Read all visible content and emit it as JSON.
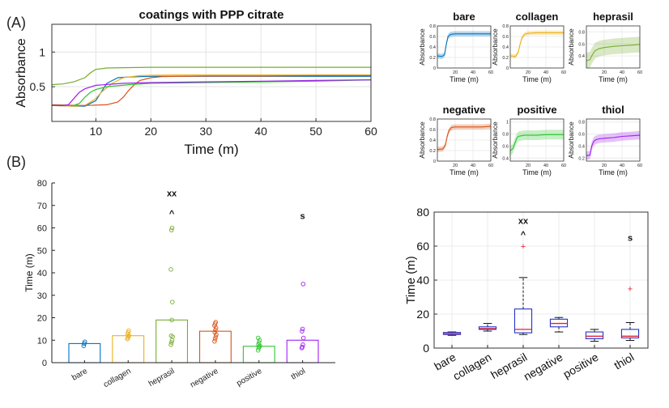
{
  "panel_labels": {
    "a": "(A)",
    "b": "(B)"
  },
  "colors": {
    "bare": "#0072BD",
    "collagen": "#EDB120",
    "hepr": "#77AC30",
    "negative": "#D95319",
    "positive": "#2EC42E",
    "thiol": "#A020F0",
    "box": "#2233CC",
    "median": "#E0203A",
    "outlier": "#E0203A"
  },
  "chart_data": [
    {
      "type": "line",
      "title": "coatings with PPP citrate",
      "xlabel": "Time (m)",
      "ylabel": "Absorbance",
      "xlim": [
        2,
        60
      ],
      "ylim": [
        0,
        1.4
      ],
      "xticks": [
        "10",
        "20",
        "30",
        "40",
        "50",
        "60"
      ],
      "yticks": [
        "0.5",
        "1"
      ],
      "grid": true,
      "series": [
        {
          "key": "bare",
          "x": [
            2,
            6,
            8,
            10,
            12,
            14,
            16,
            18,
            20,
            25,
            30,
            40,
            50,
            60
          ],
          "y": [
            0.23,
            0.22,
            0.22,
            0.3,
            0.55,
            0.63,
            0.64,
            0.645,
            0.65,
            0.65,
            0.65,
            0.65,
            0.65,
            0.65
          ]
        },
        {
          "key": "collagen",
          "x": [
            2,
            6,
            8,
            10,
            11,
            13,
            15,
            18,
            20,
            25,
            30,
            40,
            50,
            60
          ],
          "y": [
            0.23,
            0.22,
            0.23,
            0.33,
            0.42,
            0.55,
            0.63,
            0.66,
            0.665,
            0.67,
            0.67,
            0.67,
            0.67,
            0.67
          ]
        },
        {
          "key": "hepr",
          "x": [
            2,
            4,
            6,
            8,
            9,
            10,
            12,
            15,
            20,
            30,
            40,
            50,
            60
          ],
          "y": [
            0.53,
            0.54,
            0.57,
            0.63,
            0.7,
            0.75,
            0.77,
            0.775,
            0.78,
            0.78,
            0.78,
            0.78,
            0.78
          ]
        },
        {
          "key": "negative",
          "x": [
            2,
            8,
            12,
            14,
            15,
            16,
            17,
            18,
            20,
            22,
            25,
            30,
            40,
            50,
            60
          ],
          "y": [
            0.24,
            0.23,
            0.24,
            0.28,
            0.35,
            0.45,
            0.53,
            0.59,
            0.63,
            0.645,
            0.65,
            0.655,
            0.655,
            0.66,
            0.66
          ]
        },
        {
          "key": "positive",
          "x": [
            2,
            6,
            7,
            8,
            9,
            10,
            12,
            16,
            20,
            30,
            40,
            50,
            60
          ],
          "y": [
            0.23,
            0.23,
            0.26,
            0.35,
            0.42,
            0.46,
            0.5,
            0.53,
            0.55,
            0.56,
            0.57,
            0.58,
            0.6
          ]
        },
        {
          "key": "thiol",
          "x": [
            2,
            4,
            5,
            6,
            7,
            8,
            10,
            15,
            20,
            30,
            40,
            50,
            60
          ],
          "y": [
            0.23,
            0.23,
            0.24,
            0.33,
            0.42,
            0.47,
            0.52,
            0.55,
            0.56,
            0.57,
            0.58,
            0.59,
            0.6
          ]
        }
      ]
    },
    {
      "type": "line",
      "title": "",
      "xlabel": "Time (m)",
      "ylabel": "Absorbance",
      "xlim": [
        0,
        60
      ],
      "panels": [
        {
          "title": "bare",
          "key": "bare",
          "ylim": [
            0,
            0.8
          ],
          "yticks": [
            "0",
            "0.2",
            "0.4",
            "0.6",
            "0.8"
          ],
          "xticks": [
            "20",
            "40",
            "60"
          ],
          "x": [
            0,
            5,
            8,
            10,
            12,
            15,
            20,
            30,
            40,
            50,
            60
          ],
          "y": [
            0.23,
            0.22,
            0.25,
            0.45,
            0.6,
            0.64,
            0.65,
            0.65,
            0.65,
            0.65,
            0.65
          ],
          "band": 0.05
        },
        {
          "title": "collagen",
          "key": "collagen",
          "ylim": [
            0,
            0.8
          ],
          "yticks": [
            "0",
            "0.2",
            "0.4",
            "0.6",
            "0.8"
          ],
          "xticks": [
            "20",
            "40",
            "60"
          ],
          "x": [
            0,
            6,
            9,
            11,
            13,
            16,
            20,
            30,
            40,
            50,
            60
          ],
          "y": [
            0.23,
            0.22,
            0.3,
            0.45,
            0.57,
            0.64,
            0.66,
            0.67,
            0.67,
            0.67,
            0.67
          ],
          "band": 0.04
        },
        {
          "title": "heprasil",
          "key": "hepr",
          "ylim": [
            0.2,
            0.9
          ],
          "yticks": [
            "0.4",
            "0.6",
            "0.8"
          ],
          "xticks": [
            "20",
            "40",
            "60"
          ],
          "x": [
            0,
            4,
            6,
            8,
            10,
            14,
            20,
            30,
            40,
            50,
            60
          ],
          "y": [
            0.32,
            0.34,
            0.4,
            0.45,
            0.49,
            0.52,
            0.54,
            0.56,
            0.57,
            0.58,
            0.59
          ],
          "band": 0.13
        },
        {
          "title": "negative",
          "key": "negative",
          "ylim": [
            0,
            0.8
          ],
          "yticks": [
            "0",
            "0.2",
            "0.4",
            "0.6",
            "0.8"
          ],
          "xticks": [
            "20",
            "40",
            "60"
          ],
          "x": [
            0,
            6,
            9,
            11,
            13,
            16,
            20,
            30,
            40,
            50,
            60
          ],
          "y": [
            0.22,
            0.23,
            0.3,
            0.47,
            0.58,
            0.64,
            0.65,
            0.65,
            0.65,
            0.65,
            0.66
          ],
          "band": 0.05
        },
        {
          "title": "positive",
          "key": "positive",
          "ylim": [
            0.35,
            1.05
          ],
          "yticks": [
            "0.4",
            "0.6",
            "0.8",
            "1"
          ],
          "xticks": [
            "20",
            "40",
            "60"
          ],
          "x": [
            0,
            3,
            5,
            7,
            9,
            12,
            16,
            20,
            30,
            40,
            50,
            60
          ],
          "y": [
            0.52,
            0.56,
            0.64,
            0.72,
            0.76,
            0.77,
            0.78,
            0.78,
            0.78,
            0.79,
            0.79,
            0.79
          ],
          "band": 0.08
        },
        {
          "title": "thiol",
          "key": "thiol",
          "ylim": [
            0.15,
            0.85
          ],
          "yticks": [
            "0.2",
            "0.4",
            "0.6",
            "0.8"
          ],
          "xticks": [
            "20",
            "40",
            "60"
          ],
          "x": [
            0,
            4,
            6,
            8,
            10,
            14,
            20,
            30,
            40,
            50,
            60
          ],
          "y": [
            0.24,
            0.25,
            0.4,
            0.47,
            0.5,
            0.52,
            0.53,
            0.54,
            0.56,
            0.57,
            0.58
          ],
          "band": 0.07
        }
      ]
    },
    {
      "type": "bar",
      "title": "",
      "xlabel": "",
      "ylabel": "Time (m)",
      "ylim": [
        0,
        80
      ],
      "yticks": [
        "0",
        "10",
        "20",
        "30",
        "40",
        "50",
        "60",
        "70",
        "80"
      ],
      "categories": [
        "bare",
        "collagen",
        "heprasil",
        "negative",
        "positive",
        "thiol"
      ],
      "keys": [
        "bare",
        "collagen",
        "hepr",
        "negative",
        "positive",
        "thiol"
      ],
      "values": [
        8.5,
        12,
        19,
        14,
        7.3,
        10
      ],
      "points": [
        [
          7.5,
          8.5,
          9.3
        ],
        [
          10.5,
          11,
          11.6,
          12.2,
          12.8,
          13.5,
          14.3
        ],
        [
          8,
          9,
          10,
          11.5,
          12,
          19,
          27,
          41.5,
          59,
          60
        ],
        [
          9.5,
          10.5,
          11.5,
          12.5,
          13.5,
          14.5,
          15.5,
          16.5,
          17.3,
          18
        ],
        [
          5.5,
          6.5,
          7,
          7.5,
          8,
          9,
          10,
          11
        ],
        [
          6.5,
          7,
          8,
          11,
          14,
          15,
          35
        ]
      ],
      "annotations": [
        {
          "category": "heprasil",
          "text": "xx",
          "y": 74
        },
        {
          "category": "heprasil",
          "text": "^",
          "y": 65
        },
        {
          "category": "thiol",
          "text": "s",
          "y": 64
        }
      ]
    },
    {
      "type": "box",
      "title": "",
      "xlabel": "",
      "ylabel": "Time (m)",
      "ylim": [
        0,
        80
      ],
      "yticks": [
        "0",
        "20",
        "40",
        "60",
        "80"
      ],
      "categories": [
        "bare",
        "collagen",
        "heprasil",
        "negative",
        "positive",
        "thiol"
      ],
      "boxes": [
        {
          "min": 7.5,
          "q1": 8,
          "median": 8.5,
          "q3": 9.2,
          "max": 9.5,
          "outliers": []
        },
        {
          "min": 10,
          "q1": 11,
          "median": 11.5,
          "q3": 12.5,
          "max": 14.5,
          "outliers": []
        },
        {
          "min": 8,
          "q1": 9,
          "median": 11,
          "q3": 23,
          "max": 41.5,
          "outliers": [
            60
          ]
        },
        {
          "min": 9.5,
          "q1": 12.5,
          "median": 14.5,
          "q3": 17,
          "max": 18,
          "outliers": []
        },
        {
          "min": 4,
          "q1": 5.5,
          "median": 7,
          "q3": 9.5,
          "max": 11,
          "outliers": []
        },
        {
          "min": 4.5,
          "q1": 6,
          "median": 7,
          "q3": 11,
          "max": 15,
          "outliers": [
            35
          ]
        }
      ],
      "annotations": [
        {
          "category": "heprasil",
          "text": "xx",
          "y": 73
        },
        {
          "category": "heprasil",
          "text": "^",
          "y": 65
        },
        {
          "category": "thiol",
          "text": "s",
          "y": 63
        }
      ]
    }
  ]
}
